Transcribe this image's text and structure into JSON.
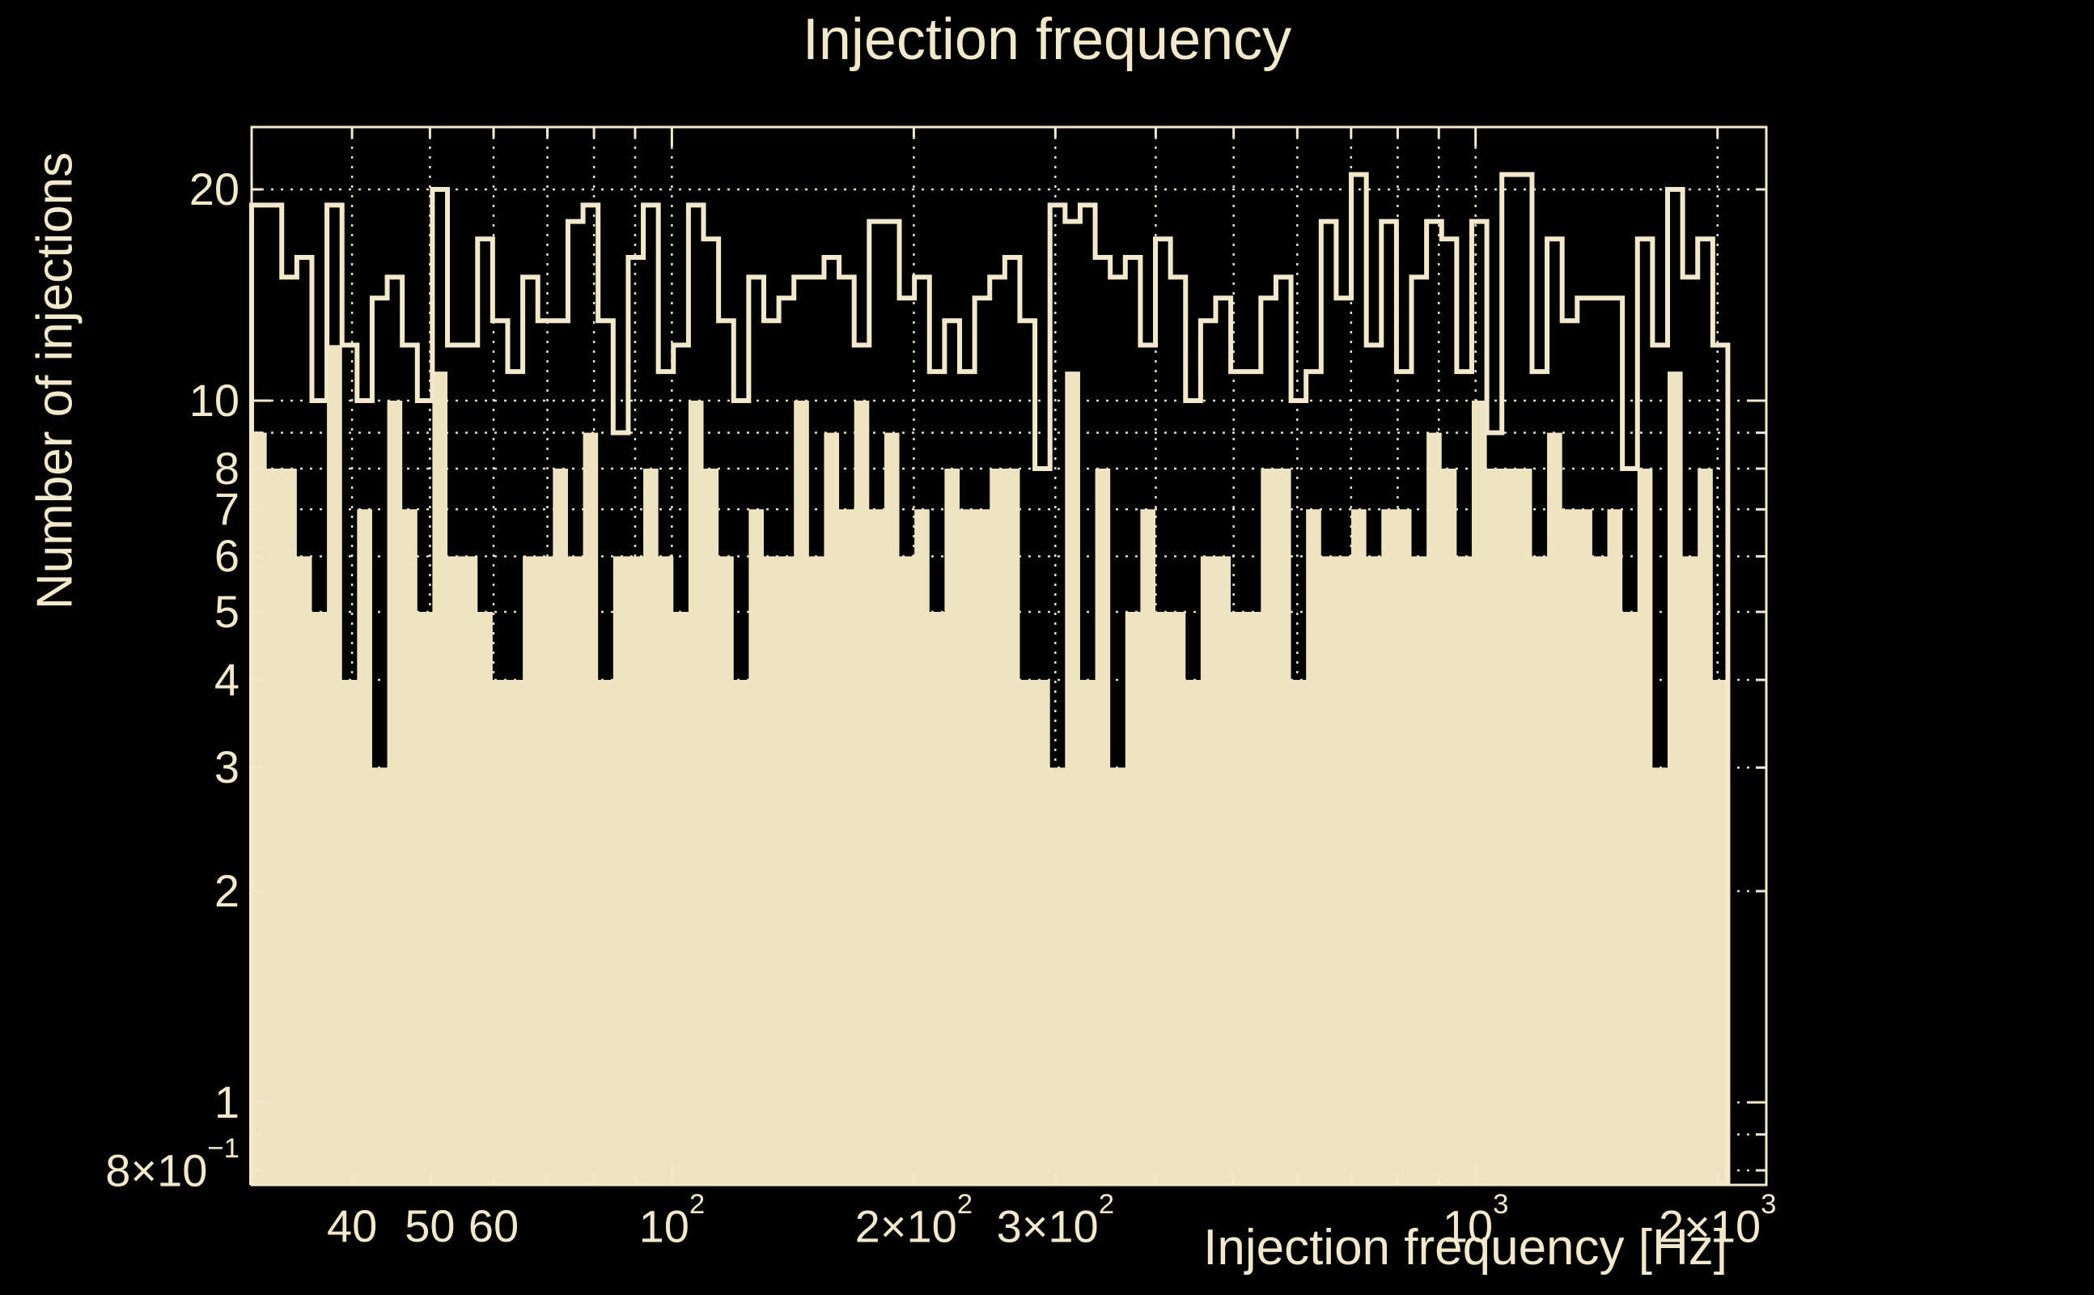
{
  "title": "Injection frequency",
  "chart_data": {
    "type": "bar",
    "subtype": "log-log step histograms, 98 log-uniform bins",
    "title": "Injection frequency",
    "xlabel": "Injection frequency [Hz]",
    "ylabel": "Number of injections",
    "x_scale": "log",
    "y_scale": "log",
    "xlim_hz": [
      30,
      2300
    ],
    "ylim": [
      0.763,
      24.5
    ],
    "grid": "dotted",
    "legend_position": "none",
    "bins": {
      "first_edge_hz": 30,
      "last_edge_hz": 2060,
      "count": 98,
      "spacing": "log-uniform"
    },
    "series": [
      {
        "name": "outline-histogram",
        "style": "step-outline",
        "values": [
          19,
          19,
          15,
          16,
          10,
          19,
          12,
          10,
          14,
          15,
          12,
          10,
          20,
          12,
          12,
          17,
          13,
          11,
          15,
          13,
          13,
          18,
          19,
          13,
          9,
          16,
          19,
          11,
          12,
          19,
          17,
          13,
          10,
          15,
          13,
          14,
          15,
          15,
          16,
          15,
          12,
          18,
          18,
          14,
          15,
          11,
          13,
          11,
          14,
          15,
          16,
          13,
          8,
          19,
          18,
          19,
          16,
          15,
          16,
          12,
          17,
          15,
          10,
          13,
          14,
          11,
          11,
          14,
          15,
          10,
          11,
          18,
          14,
          21,
          12,
          18,
          11,
          15,
          18,
          17,
          11,
          18,
          9,
          21,
          21,
          11,
          17,
          13,
          14,
          14,
          14,
          8,
          17,
          12,
          20,
          15,
          17,
          12
        ]
      },
      {
        "name": "filled-histogram",
        "style": "filled",
        "values": [
          9,
          8,
          8,
          6,
          5,
          12,
          4,
          7,
          3,
          10,
          7,
          5,
          11,
          6,
          6,
          5,
          4,
          4,
          6,
          6,
          8,
          6,
          9,
          4,
          6,
          6,
          8,
          6,
          5,
          10,
          8,
          6,
          4,
          7,
          6,
          6,
          10,
          6,
          9,
          7,
          10,
          7,
          9,
          6,
          7,
          5,
          8,
          7,
          7,
          8,
          8,
          4,
          4,
          3,
          11,
          4,
          8,
          3,
          5,
          7,
          5,
          5,
          4,
          6,
          6,
          5,
          5,
          8,
          8,
          4,
          7,
          6,
          6,
          7,
          6,
          7,
          7,
          6,
          9,
          8,
          6,
          10,
          8,
          8,
          8,
          6,
          9,
          7,
          7,
          6,
          7,
          5,
          8,
          3,
          11,
          6,
          8,
          4
        ]
      }
    ],
    "x_ticks": [
      {
        "f": 40,
        "base": "40"
      },
      {
        "f": 50,
        "base": "50"
      },
      {
        "f": 60,
        "base": "60"
      },
      {
        "f": 100,
        "base": "10",
        "sup": "2"
      },
      {
        "f": 200,
        "base": "2×10",
        "sup": "2"
      },
      {
        "f": 300,
        "base": "3×10",
        "sup": "2"
      },
      {
        "f": 1000,
        "base": "10",
        "sup": "3"
      },
      {
        "f": 2000,
        "base": "2×10",
        "sup": "3"
      }
    ],
    "y_ticks": [
      {
        "v": 20,
        "base": "20"
      },
      {
        "v": 10,
        "base": "10"
      },
      {
        "v": 8,
        "base": "8"
      },
      {
        "v": 7,
        "base": "7"
      },
      {
        "v": 6,
        "base": "6"
      },
      {
        "v": 5,
        "base": "5"
      },
      {
        "v": 4,
        "base": "4"
      },
      {
        "v": 3,
        "base": "3"
      },
      {
        "v": 2,
        "base": "2"
      },
      {
        "v": 1,
        "base": "1"
      },
      {
        "v": 0.8,
        "base": "8×10",
        "sup": "−1"
      }
    ],
    "grid_x_hz": [
      40,
      50,
      60,
      70,
      80,
      90,
      100,
      200,
      300,
      400,
      500,
      600,
      700,
      800,
      900,
      1000,
      2000
    ],
    "grid_y": [
      0.8,
      0.9,
      1,
      2,
      3,
      4,
      5,
      6,
      7,
      8,
      9,
      10,
      20
    ],
    "colors": {
      "background": "#000000",
      "foreground": "#F2E8CC",
      "fill": "#EFE4C1"
    }
  }
}
